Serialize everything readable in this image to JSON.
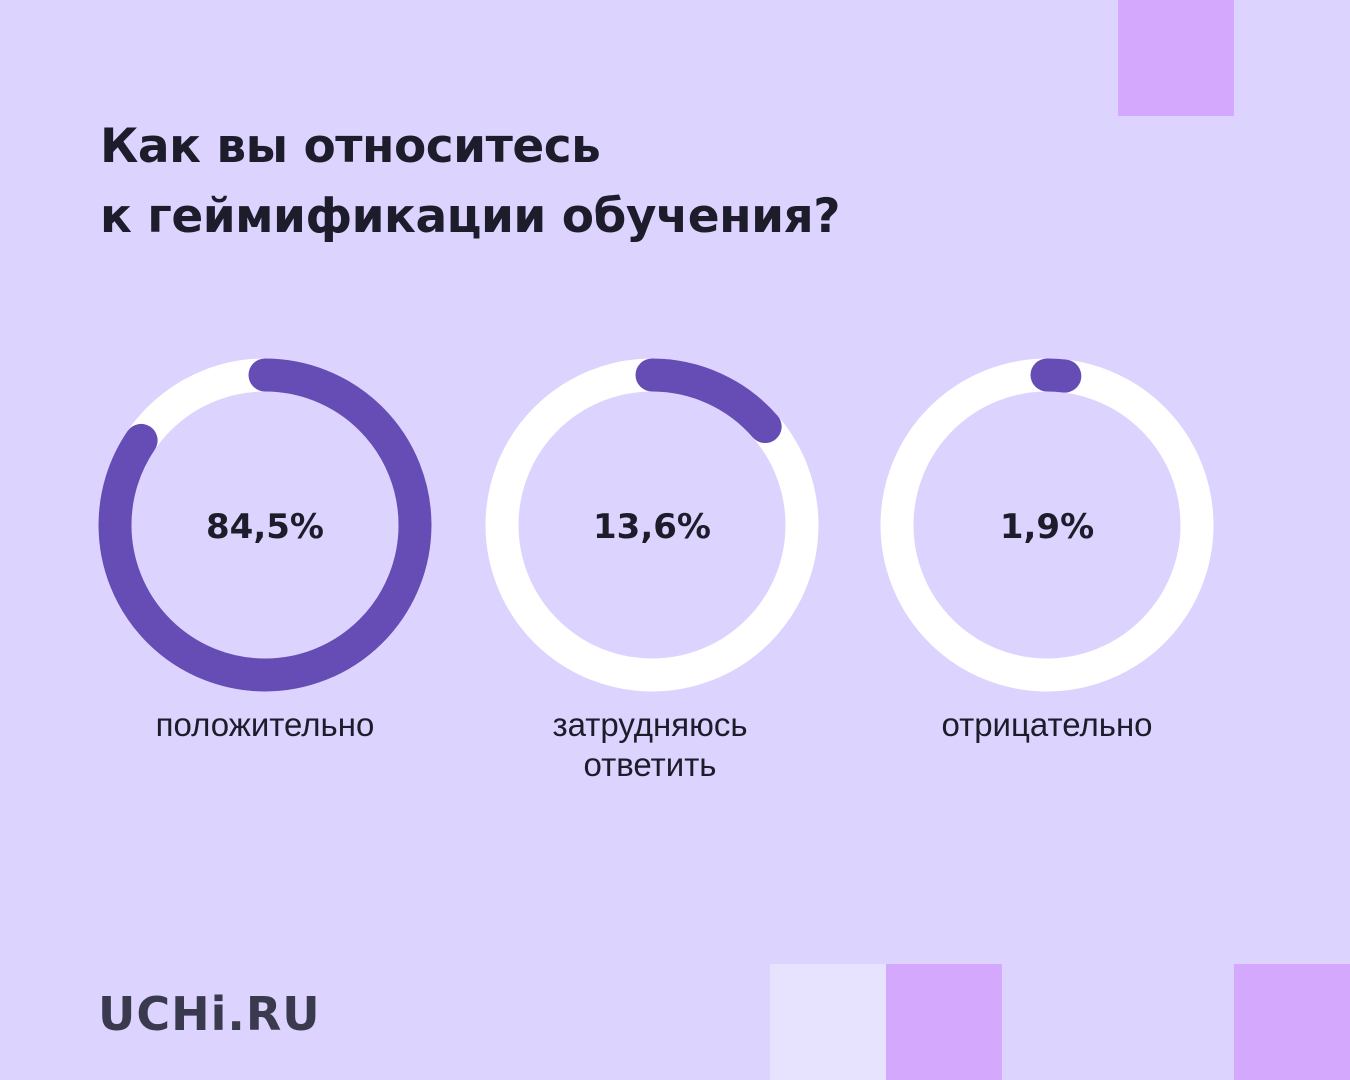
{
  "title_lines": [
    "Как вы относитесь",
    "к геймификации обучения?"
  ],
  "logo_text": "UCHi.RU",
  "colors": {
    "background": "#dcd3fe",
    "ring_track": "#ffffff",
    "ring_fill": "#664cb5",
    "deco_square": "#d4a8fd",
    "deco_square_light": "#e7e2fd",
    "text": "#1c1c2a"
  },
  "chart_data": {
    "type": "donut",
    "title": "Как вы относитесь к геймификации обучения?",
    "unit": "%",
    "items": [
      {
        "value": 84.5,
        "value_label": "84,5%",
        "label_lines": [
          "положительно"
        ]
      },
      {
        "value": 13.6,
        "value_label": "13,6%",
        "label_lines": [
          "затрудняюсь",
          "ответить"
        ]
      },
      {
        "value": 1.9,
        "value_label": "1,9%",
        "label_lines": [
          "отрицательно"
        ]
      }
    ]
  }
}
